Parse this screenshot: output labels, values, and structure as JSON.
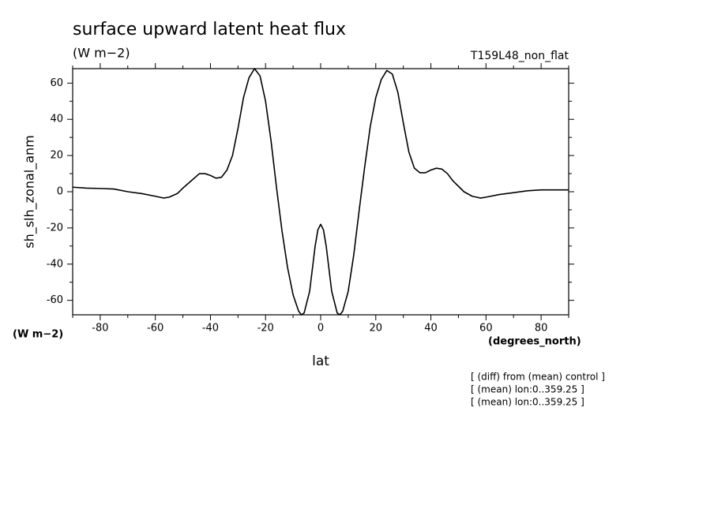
{
  "chart_data": {
    "type": "line",
    "title": "surface upward latent heat flux",
    "subtitle": "(W m−2)",
    "run_label": "T159L48_non_flat",
    "y_label": "sh_slh_zonal_anm",
    "y_units": "(W m−2)",
    "x_units": "(degrees_north)",
    "x_label": "lat",
    "notes": [
      "[ (diff) from (mean) control ]",
      "[ (mean) lon:0..359.25 ]",
      "[ (mean) lon:0..359.25 ]"
    ],
    "color": "#000000",
    "xlim": [
      -90,
      90
    ],
    "ylim": [
      -68,
      68
    ],
    "xticks": [
      -80,
      -60,
      -40,
      -20,
      0,
      20,
      40,
      60,
      80
    ],
    "yticks": [
      -60,
      -40,
      -20,
      0,
      20,
      40,
      60
    ],
    "xminorticks": [
      -90,
      -70,
      -50,
      -30,
      -10,
      10,
      30,
      50,
      70,
      90
    ],
    "yminorticks": [
      -50,
      -30,
      -10,
      10,
      30,
      50
    ],
    "x": [
      -90,
      -85,
      -80,
      -75,
      -70,
      -65,
      -60,
      -57,
      -55,
      -52,
      -50,
      -47,
      -44,
      -42,
      -40,
      -38,
      -36,
      -34,
      -32,
      -30,
      -28,
      -26,
      -24,
      -22,
      -20,
      -18,
      -16,
      -14,
      -12,
      -10,
      -8,
      -7,
      -6,
      -4,
      -2,
      -1,
      0,
      1,
      2,
      4,
      6,
      7,
      8,
      10,
      12,
      14,
      16,
      18,
      20,
      22,
      24,
      26,
      28,
      30,
      32,
      34,
      36,
      38,
      40,
      42,
      44,
      46,
      48,
      50,
      52,
      55,
      58,
      60,
      65,
      70,
      75,
      80,
      85,
      90
    ],
    "values": [
      2.5,
      2,
      1.8,
      1.5,
      0,
      -1,
      -2.5,
      -3.5,
      -3,
      -1,
      2,
      6,
      10,
      10,
      9,
      7.5,
      8,
      12,
      20,
      35,
      52,
      63,
      68,
      64,
      50,
      28,
      2,
      -22,
      -42,
      -57,
      -66,
      -68,
      -67,
      -55,
      -30,
      -21,
      -18,
      -21,
      -30,
      -55,
      -67,
      -68,
      -66,
      -55,
      -35,
      -10,
      14,
      36,
      52,
      62,
      67,
      65,
      55,
      38,
      22,
      13,
      10.5,
      10.5,
      12,
      13,
      12.5,
      10,
      6,
      3,
      0,
      -2.5,
      -3.5,
      -3,
      -1.5,
      -0.5,
      0.5,
      1,
      1,
      1
    ]
  }
}
